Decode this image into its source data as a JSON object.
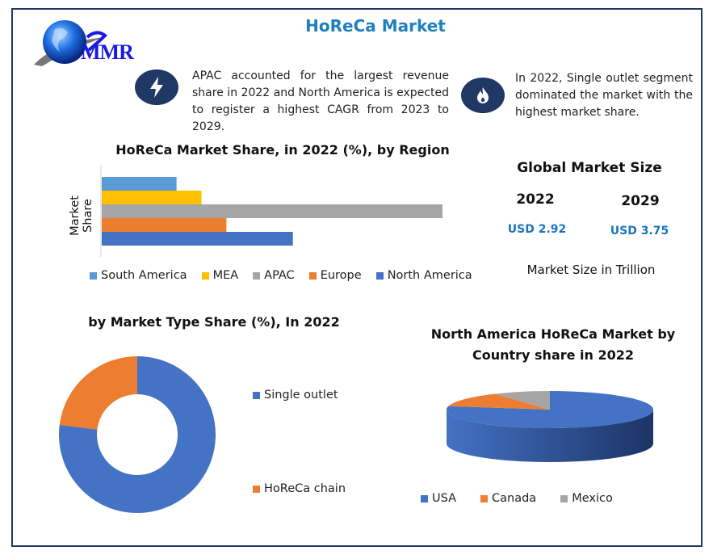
{
  "title": "HoReCa Market",
  "logo_text": "MMR",
  "notes": [
    {
      "icon": "lightning-icon",
      "text": "APAC accounted for the largest revenue share in 2022 and North America is expected to register a highest CAGR from 2023 to 2029."
    },
    {
      "icon": "flame-icon",
      "text": "In 2022, Single outlet segment dominated the market with the highest market share."
    }
  ],
  "market_size": {
    "title": "Global Market Size",
    "years": [
      {
        "year": "2022",
        "value": "USD 2.92"
      },
      {
        "year": "2029",
        "value": "USD 3.75"
      }
    ],
    "unit_note": "Market Size in Trillion",
    "value_color": "#1a75bc"
  },
  "chart_data": [
    {
      "type": "bar",
      "orientation": "horizontal",
      "title": "HoReCa Market Share, in 2022 (%), by Region",
      "ylabel": "Market Share",
      "xlabel": "",
      "categories": [
        "South America",
        "MEA",
        "APAC",
        "Europe",
        "North America"
      ],
      "values": [
        9,
        12,
        41,
        15,
        23
      ],
      "colors": [
        "#5b9bd5",
        "#ffc000",
        "#a5a5a5",
        "#ed7d31",
        "#4472c4"
      ],
      "legend": "bottom",
      "grid": false
    },
    {
      "type": "pie",
      "variant": "donut",
      "title": "by Market Type Share (%), In 2022",
      "categories": [
        "Single outlet",
        "HoReCa chain"
      ],
      "values": [
        77,
        23
      ],
      "colors": [
        "#4472c4",
        "#ed7d31"
      ],
      "legend": "right"
    },
    {
      "type": "pie",
      "variant": "3d",
      "title_lines": [
        "North America HoReCa Market  by",
        "Country share in 2022"
      ],
      "categories": [
        "USA",
        "Canada",
        "Mexico"
      ],
      "values": [
        78,
        13,
        9
      ],
      "colors": [
        "#4472c4",
        "#ed7d31",
        "#a5a5a5"
      ],
      "legend": "bottom"
    }
  ]
}
